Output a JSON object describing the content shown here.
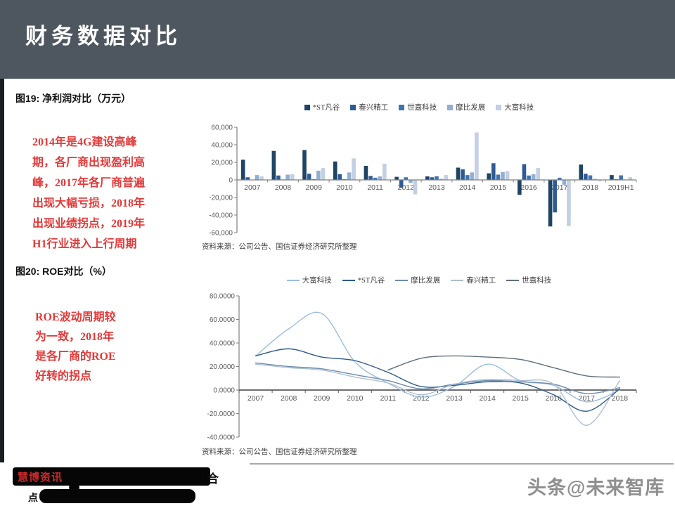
{
  "slide": {
    "title": "财务数据对比"
  },
  "colors": {
    "header_bg": "#4e575f",
    "comment_red": "#e13a3a",
    "logo_red": "#cc2a2a",
    "watermark_gray": "#8f8f8f",
    "axis_gray": "#808080",
    "label_gray": "#595959"
  },
  "fig19": {
    "caption": "图19: 净利润对比（万元）",
    "comment_lines": [
      "2014年是4G建设高峰",
      "期，各厂商出现盈利高",
      "峰，2017年各厂商普遍",
      "出现大幅亏损，2018年",
      "出现业绩拐点，2019年",
      "H1行业进入上行周期"
    ],
    "source": "资料来源：公司公告、国信证券经济研究所整理"
  },
  "fig20": {
    "caption": "图20: ROE对比（%）",
    "comment_lines": [
      "ROE波动周期较",
      "为一致，2018年",
      "是各厂商的ROE",
      "好转的拐点"
    ],
    "source": "资料来源：公司公告、国信证券经济研究所整理"
  },
  "footer": {
    "logo_text": "慧博资讯",
    "partial_char_right": "合",
    "partial_char_left": "点",
    "watermark": "头条@未来智库"
  },
  "chart_data": [
    {
      "id": "net-profit",
      "type": "bar",
      "title": "净利润对比（万元）",
      "categories": [
        "2007",
        "2008",
        "2009",
        "2010",
        "2011",
        "2012",
        "2013",
        "2014",
        "2015",
        "2016",
        "2017",
        "2018",
        "2019H1"
      ],
      "series": [
        {
          "name": "*ST凡谷",
          "color": "#1f4464",
          "values": [
            23000,
            33000,
            34000,
            21000,
            16000,
            3500,
            4000,
            14000,
            7500,
            -17000,
            -53000,
            17500,
            5500
          ]
        },
        {
          "name": "春兴精工",
          "color": "#2f5b94",
          "values": [
            3000,
            5000,
            7000,
            6500,
            4500,
            -9000,
            3000,
            12000,
            19000,
            18000,
            -37000,
            7000,
            800
          ]
        },
        {
          "name": "世嘉科技",
          "color": "#3f74ae",
          "values": [
            400,
            500,
            800,
            800,
            2500,
            3000,
            4200,
            5500,
            6000,
            5000,
            2500,
            5200,
            5200
          ]
        },
        {
          "name": "摩比发展",
          "color": "#93aed2",
          "values": [
            5500,
            6000,
            10500,
            8500,
            4000,
            -3500,
            1200,
            8500,
            9000,
            6500,
            -5500,
            1200,
            300
          ]
        },
        {
          "name": "大富科技",
          "color": "#c3cfe4",
          "values": [
            4000,
            6500,
            13500,
            24500,
            18500,
            -16500,
            5500,
            54000,
            10000,
            13500,
            -52500,
            -1500,
            3200
          ]
        }
      ],
      "ylim": [
        -60000,
        60000
      ],
      "ytick_step": 20000,
      "legend_position": "top",
      "grid": false
    },
    {
      "id": "roe",
      "type": "line",
      "title": "ROE对比（%）",
      "categories": [
        "2007",
        "2008",
        "2009",
        "2010",
        "2011",
        "2012",
        "2013",
        "2014",
        "2015",
        "2016",
        "2017",
        "2018"
      ],
      "series": [
        {
          "name": "大富科技",
          "color": "#9bbdde",
          "values": [
            29,
            52,
            65,
            24,
            6,
            -6,
            3,
            22,
            8,
            4,
            -10,
            0
          ]
        },
        {
          "name": "*ST凡谷",
          "color": "#2e5a8c",
          "values": [
            29,
            35,
            28,
            25,
            15,
            3,
            4,
            7,
            6,
            -4,
            -18,
            1
          ]
        },
        {
          "name": "摩比发展",
          "color": "#6d8cae",
          "values": [
            23,
            20,
            18,
            13,
            8,
            1,
            5,
            8,
            7,
            5,
            -3,
            2
          ]
        },
        {
          "name": "春兴精工",
          "color": "#aebfd0",
          "values": [
            22,
            19,
            17,
            11,
            6,
            -4,
            5,
            9,
            8,
            5,
            -30,
            8
          ]
        },
        {
          "name": "世嘉科技",
          "color": "#5f6f7e",
          "values": [
            null,
            null,
            null,
            null,
            17,
            27,
            29,
            28,
            26,
            19,
            12,
            11
          ]
        }
      ],
      "ylim": [
        -40,
        80
      ],
      "ytick_step": 20,
      "y_format": "4dp",
      "legend_position": "top",
      "grid": false
    }
  ]
}
